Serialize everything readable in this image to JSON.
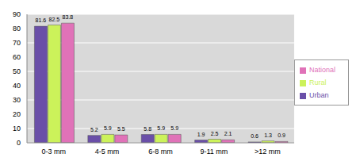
{
  "chart_data": {
    "type": "bar",
    "categories": [
      "0-3 mm",
      "4-5 mm",
      "6-8 mm",
      "9-11 mm",
      ">12 mm"
    ],
    "series": [
      {
        "name": "Urban",
        "color": "#6a4fa8",
        "values": [
          81.6,
          5.2,
          5.8,
          1.9,
          0.6
        ]
      },
      {
        "name": "Rural",
        "color": "#ccf25a",
        "values": [
          82.5,
          5.9,
          5.9,
          2.5,
          1.3
        ]
      },
      {
        "name": "National",
        "color": "#e072b8",
        "values": [
          83.8,
          5.5,
          5.9,
          2.1,
          0.9
        ]
      }
    ],
    "ylim": [
      0,
      90
    ],
    "yticks": [
      0,
      10,
      20,
      30,
      40,
      50,
      60,
      70,
      80,
      90
    ],
    "grid": true,
    "legend": "right",
    "data_labels": true
  }
}
